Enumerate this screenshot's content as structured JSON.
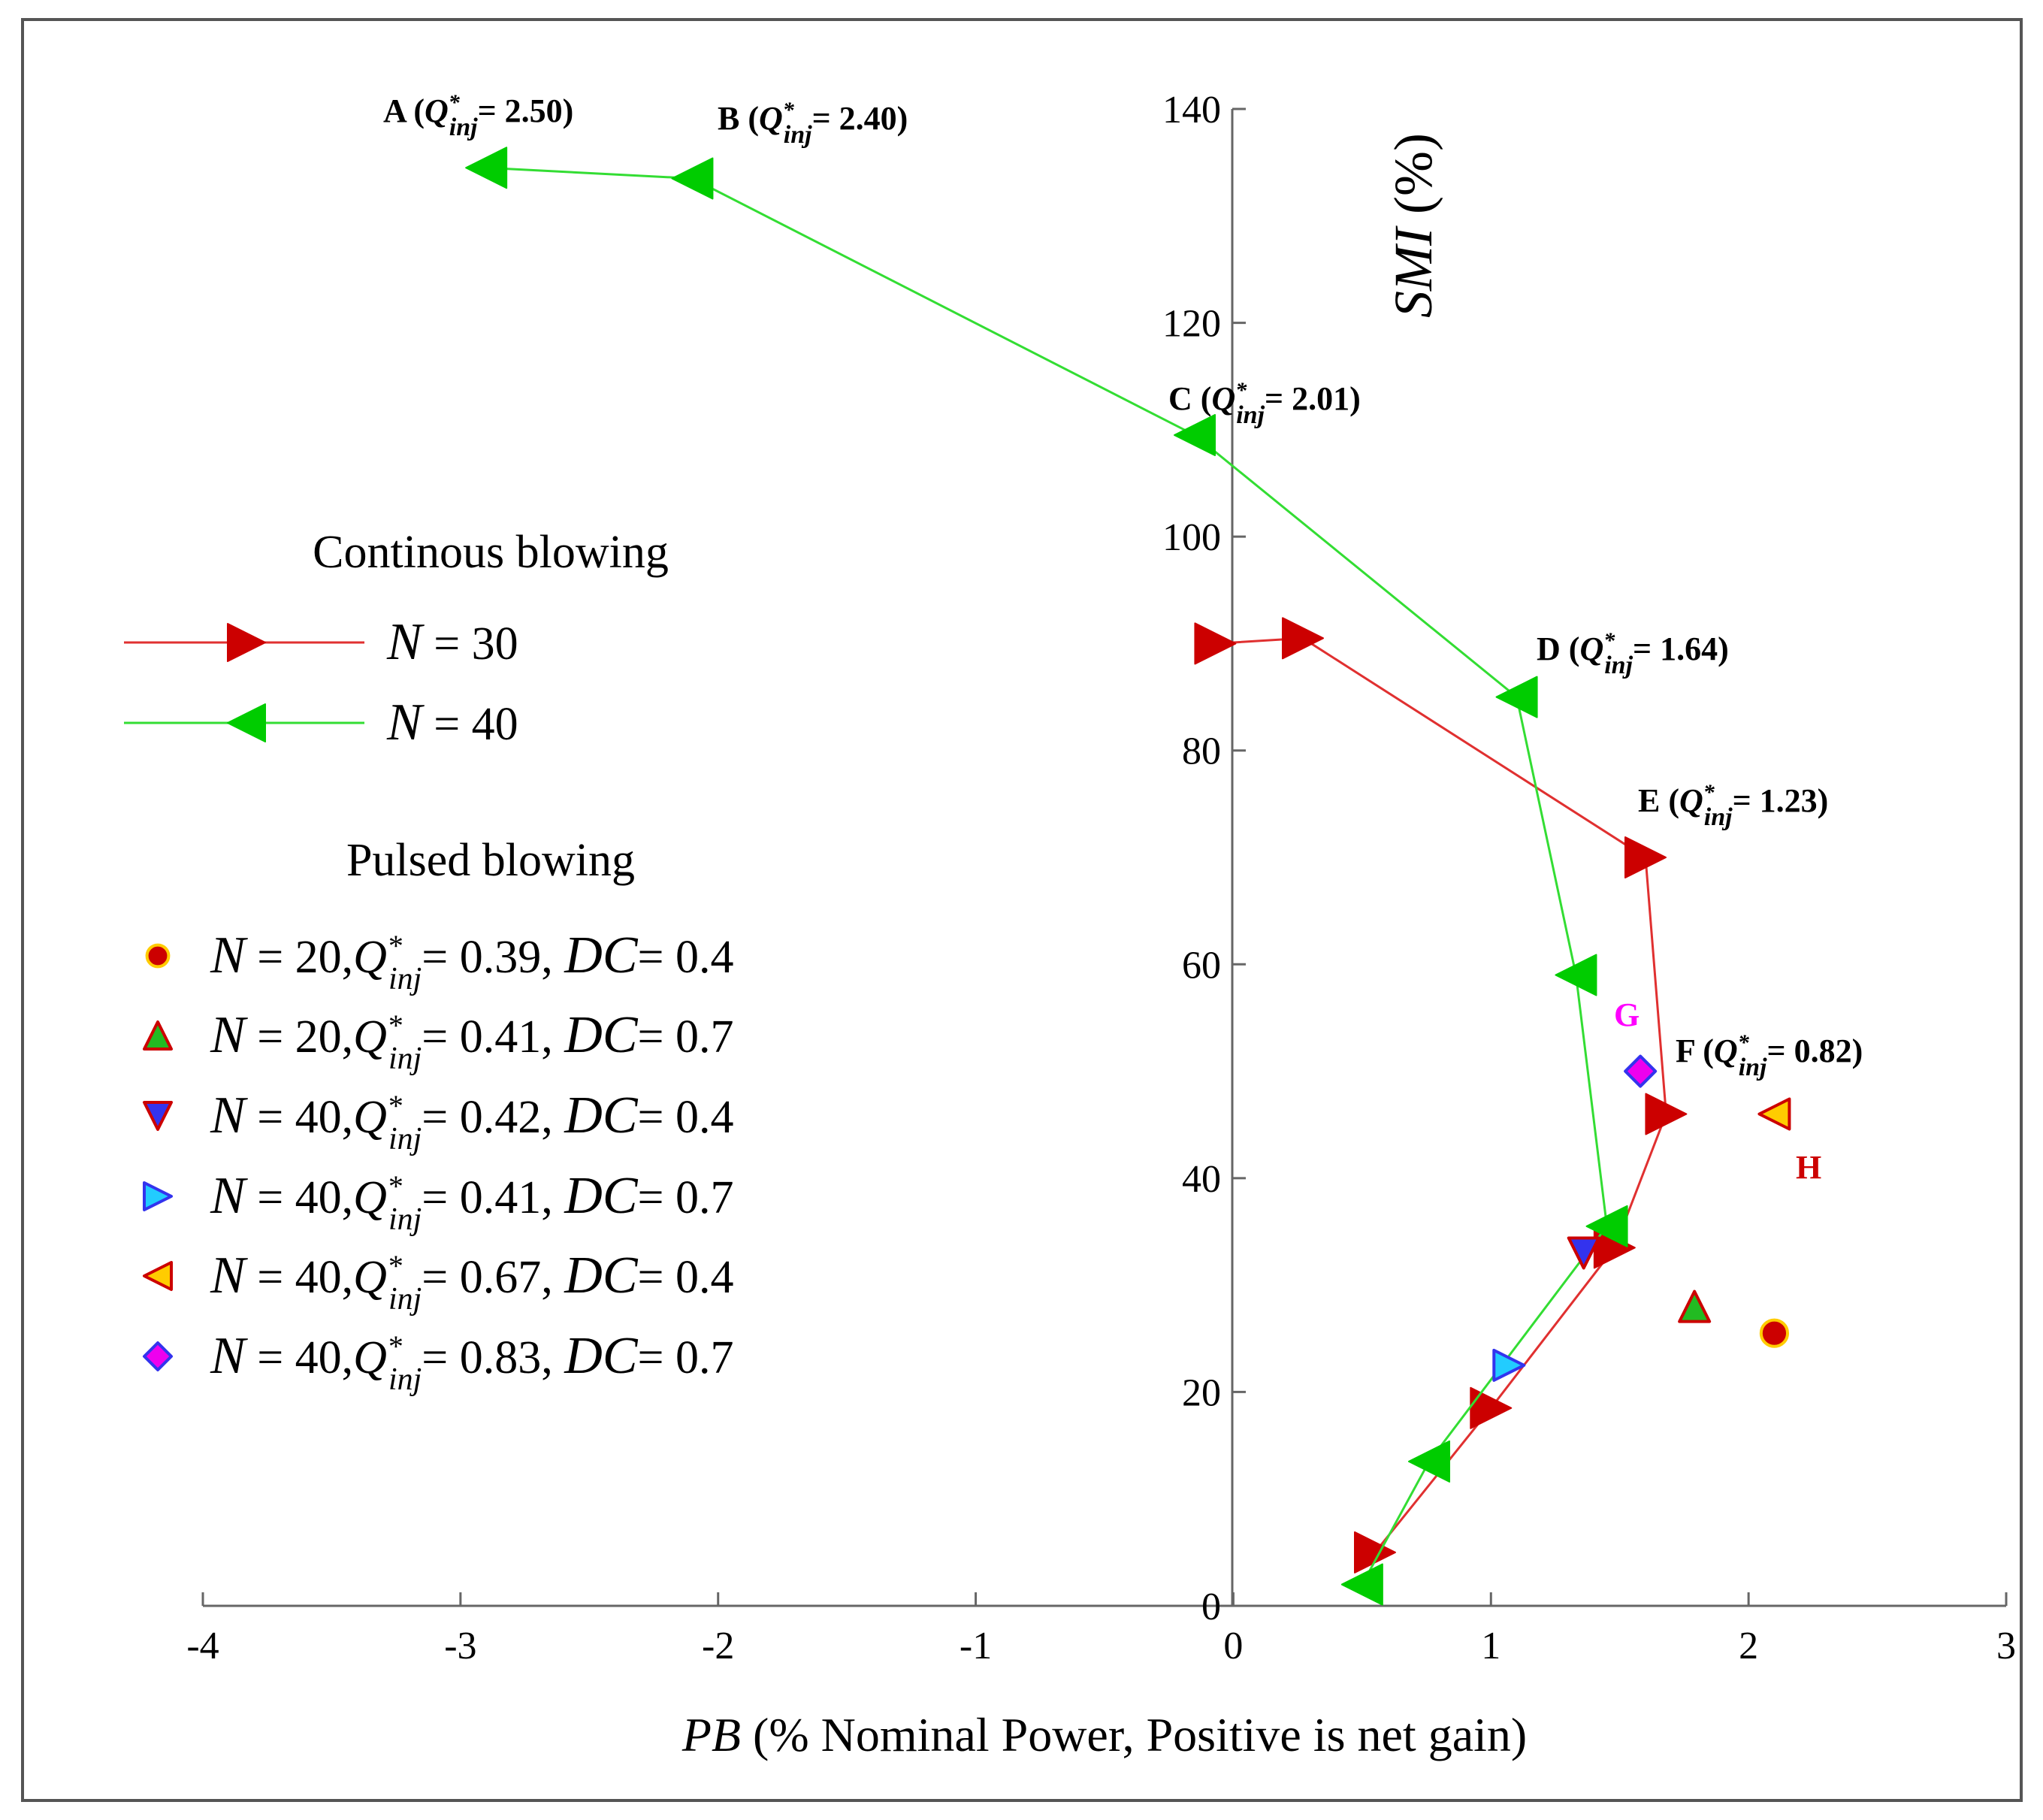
{
  "chart_data": {
    "type": "scatter",
    "xlabel_var": "PB",
    "xlabel_rest": " (% Nominal Power, Positive is net gain)",
    "ylabel_var": "SMI",
    "ylabel_rest": " (%)",
    "xlim": [
      -4,
      3
    ],
    "ylim": [
      0,
      140
    ],
    "xticks": [
      -4,
      -3,
      -2,
      -1,
      0,
      1,
      2,
      3
    ],
    "yticks": [
      0,
      20,
      40,
      60,
      80,
      100,
      120,
      140
    ],
    "continuous_title": "Continous blowing",
    "pulsed_title": "Pulsed blowing",
    "series": [
      {
        "name": "N = 30",
        "n_label": "N",
        "n_value": " = 30",
        "marker": "triangle-right",
        "color": "#cc0000",
        "line_color": "#e03030",
        "x": [
          0.55,
          1.0,
          1.48,
          1.68,
          1.6,
          0.27,
          -0.07
        ],
        "y": [
          5,
          18.5,
          33.5,
          46,
          70,
          90.5,
          90
        ]
      },
      {
        "name": "N = 40",
        "n_label": "N",
        "n_value": " = 40",
        "marker": "triangle-left",
        "color": "#00cc00",
        "line_color": "#33dd33",
        "x": [
          0.5,
          0.76,
          1.45,
          1.33,
          1.1,
          -0.15,
          -2.1,
          -2.9
        ],
        "y": [
          2,
          13.5,
          35.5,
          59,
          85,
          109.5,
          133.5,
          134.5
        ]
      }
    ],
    "pulsed": [
      {
        "n": "N",
        "n_val": " = 20,",
        "q": "0.39",
        "dc": "0.4",
        "marker": "circle",
        "fill": "#cc0000",
        "stroke": "#ffcc00",
        "x": 2.1,
        "y": 25.5
      },
      {
        "n": "N",
        "n_val": " = 20,",
        "q": "0.41",
        "dc": "0.7",
        "marker": "triangle-up",
        "fill": "#22bb22",
        "stroke": "#cc0000",
        "x": 1.79,
        "y": 28
      },
      {
        "n": "N",
        "n_val": " = 40,",
        "q": "0.42",
        "dc": "0.4",
        "marker": "triangle-down",
        "fill": "#3333ee",
        "stroke": "#cc0000",
        "x": 1.36,
        "y": 33
      },
      {
        "n": "N",
        "n_val": " = 40,",
        "q": "0.41",
        "dc": "0.7",
        "marker": "triangle-right",
        "fill": "#22ccff",
        "stroke": "#3333ee",
        "x": 1.07,
        "y": 22.5
      },
      {
        "n": "N",
        "n_val": " = 40,",
        "q": "0.67",
        "dc": "0.4",
        "marker": "triangle-left",
        "fill": "#ffcc00",
        "stroke": "#cc0000",
        "x": 2.1,
        "y": 46
      },
      {
        "n": "N",
        "n_val": " = 40,",
        "q": "0.83",
        "dc": "0.7",
        "marker": "diamond",
        "fill": "#ee00ee",
        "stroke": "#3333ee",
        "x": 1.58,
        "y": 50
      }
    ],
    "q_symbol": "Q",
    "q_sup": "*",
    "q_sub": "inj",
    "dc_symbol": "DC",
    "eq": "= ",
    "annotations": [
      {
        "letter": "A",
        "value": "2.50)"
      },
      {
        "letter": "B",
        "value": "2.40)"
      },
      {
        "letter": "C",
        "value": "2.01)"
      },
      {
        "letter": "D",
        "value": "1.64)"
      },
      {
        "letter": "E",
        "value": "1.23)"
      },
      {
        "letter": "F",
        "value": "0.82)"
      }
    ],
    "point_labels": [
      {
        "text": "G",
        "color": "#ff00ff"
      },
      {
        "text": "H",
        "color": "#cc0000"
      }
    ]
  }
}
